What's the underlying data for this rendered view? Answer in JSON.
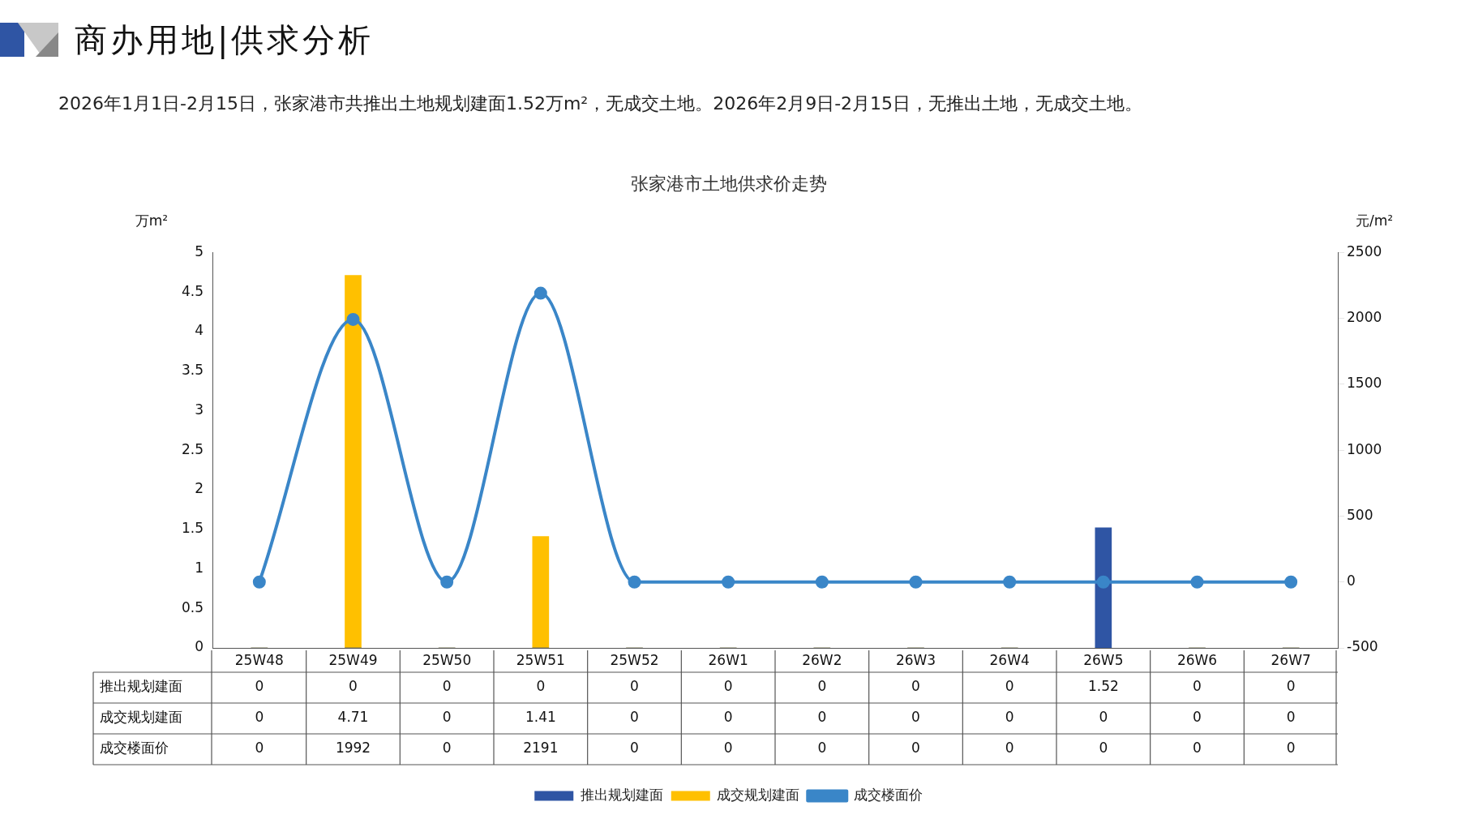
{
  "chart_data": {
    "type": "bar",
    "title": "张家港市土地供求价走势",
    "subtitle": "2026年1月1日-2月15日，张家港市共推出土地规划建面1.52万m²，无成交土地。2026年2月9日-2月15日，无推出土地，无成交土地。",
    "annotations": [
      "商办用地|供求分析"
    ],
    "ylabel": "万m²",
    "y2label": "元/m²",
    "categories": [
      "25W48",
      "25W49",
      "25W50",
      "25W51",
      "25W52",
      "26W1",
      "26W2",
      "26W3",
      "26W4",
      "26W5",
      "26W6",
      "26W7"
    ],
    "series": [
      {
        "name": "推出规划建面",
        "color": "#2f55a4",
        "values": [
          0,
          0,
          0,
          0,
          0,
          0,
          0,
          0,
          0,
          1.52,
          0,
          0
        ]
      },
      {
        "name": "成交规划建面",
        "color": "#ffc000",
        "values": [
          0,
          4.71,
          0,
          1.41,
          0,
          0,
          0,
          0,
          0,
          0,
          0,
          0
        ]
      },
      {
        "name": "成交楼面价",
        "type": "line",
        "axis": "y2",
        "color": "#3a86c8",
        "values": [
          0,
          1992,
          0,
          2191,
          0,
          0,
          0,
          0,
          0,
          0,
          0,
          0
        ]
      }
    ],
    "ylim": [
      0,
      5
    ],
    "yticks": [
      0,
      0.5,
      1,
      1.5,
      2,
      2.5,
      3,
      3.5,
      4,
      4.5,
      5
    ],
    "y2lim": [
      -500,
      2500
    ],
    "y2ticks": [
      -500,
      0,
      500,
      1000,
      1500,
      2000,
      2500
    ],
    "grid": false,
    "legend": "bottom",
    "marker": "circle",
    "data_labels": true
  }
}
